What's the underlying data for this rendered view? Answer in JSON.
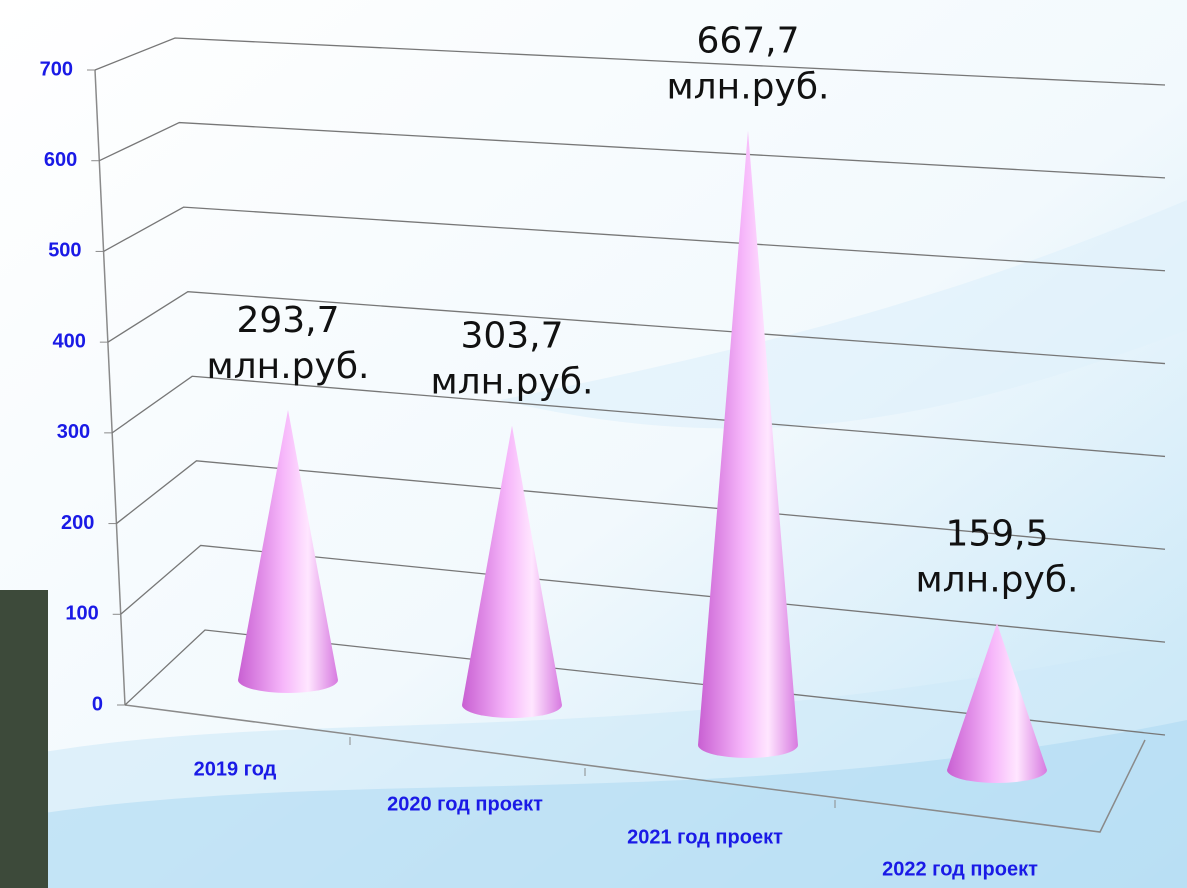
{
  "chart_data": {
    "type": "cone3d",
    "categories": [
      "2019 год",
      "2020 год проект",
      "2021 год проект",
      "2022 год проект"
    ],
    "values": [
      293.7,
      303.7,
      667.7,
      159.5
    ],
    "value_labels": [
      "293,7 млн.руб.",
      "303,7 млн.руб.",
      "667,7 млн.руб.",
      "159,5 млн.руб."
    ],
    "color": "#e88cf0",
    "ylim": [
      0,
      700
    ],
    "yticks": [
      0,
      100,
      200,
      300,
      400,
      500,
      600,
      700
    ],
    "grid": true
  }
}
